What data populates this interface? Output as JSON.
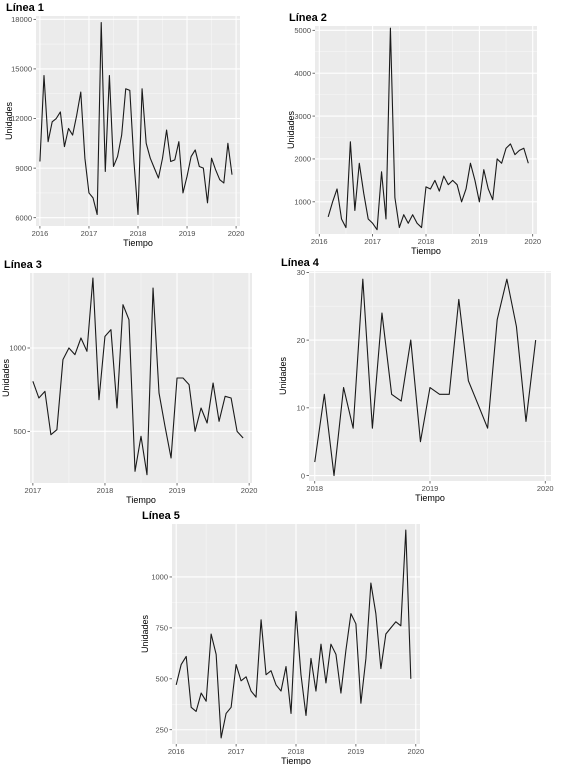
{
  "chart_data": [
    {
      "type": "line",
      "title": "Línea 1",
      "xlabel": "Tiempo",
      "ylabel": "Unidades",
      "xlim": [
        2015.92,
        2020.08
      ],
      "ylim": [
        5500,
        18200
      ],
      "xticks": [
        2016,
        2017,
        2018,
        2019,
        2020
      ],
      "xtick_labels": [
        "2016",
        "2017",
        "2018",
        "2019",
        "2020"
      ],
      "yticks": [
        6000,
        9000,
        12000,
        15000,
        18000
      ],
      "ytick_labels": [
        "6000",
        "9000",
        "12000",
        "15000",
        "18000"
      ],
      "grid": true,
      "series": [
        {
          "x": [
            2016.0,
            2016.083,
            2016.167,
            2016.25,
            2016.333,
            2016.417,
            2016.5,
            2016.583,
            2016.667,
            2016.75,
            2016.833,
            2016.917,
            2017.0,
            2017.083,
            2017.167,
            2017.25,
            2017.333,
            2017.417,
            2017.5,
            2017.583,
            2017.667,
            2017.75,
            2017.833,
            2017.917,
            2018.0,
            2018.083,
            2018.167,
            2018.25,
            2018.333,
            2018.417,
            2018.5,
            2018.583,
            2018.667,
            2018.75,
            2018.833,
            2018.917,
            2019.0,
            2019.083,
            2019.167,
            2019.25,
            2019.333,
            2019.417,
            2019.5,
            2019.583,
            2019.667,
            2019.75,
            2019.833,
            2019.917
          ],
          "y": [
            9400,
            14600,
            10600,
            11800,
            12000,
            12400,
            10300,
            11400,
            11000,
            12200,
            13600,
            9600,
            7500,
            7200,
            6200,
            17800,
            8800,
            14600,
            9100,
            9700,
            11000,
            13800,
            13700,
            9400,
            6200,
            13800,
            10500,
            9600,
            9000,
            8400,
            9600,
            11300,
            9400,
            9500,
            10600,
            7500,
            8500,
            9700,
            10100,
            9100,
            9000,
            6900,
            9600,
            8900,
            8300,
            8100,
            10500,
            8600
          ]
        }
      ]
    },
    {
      "type": "line",
      "title": "Línea 2",
      "xlabel": "Tiempo",
      "ylabel": "Unidades",
      "xlim": [
        2015.92,
        2020.08
      ],
      "ylim": [
        250,
        5100
      ],
      "xticks": [
        2016,
        2017,
        2018,
        2019,
        2020
      ],
      "xtick_labels": [
        "2016",
        "2017",
        "2018",
        "2019",
        "2020"
      ],
      "yticks": [
        1000,
        2000,
        3000,
        4000,
        5000
      ],
      "ytick_labels": [
        "1000",
        "2000",
        "3000",
        "4000",
        "5000"
      ],
      "grid": true,
      "series": [
        {
          "x": [
            2016.167,
            2016.25,
            2016.333,
            2016.417,
            2016.5,
            2016.583,
            2016.667,
            2016.75,
            2016.833,
            2016.917,
            2017.0,
            2017.083,
            2017.167,
            2017.25,
            2017.333,
            2017.417,
            2017.5,
            2017.583,
            2017.667,
            2017.75,
            2017.833,
            2017.917,
            2018.0,
            2018.083,
            2018.167,
            2018.25,
            2018.333,
            2018.417,
            2018.5,
            2018.583,
            2018.667,
            2018.75,
            2018.833,
            2018.917,
            2019.0,
            2019.083,
            2019.167,
            2019.25,
            2019.333,
            2019.417,
            2019.5,
            2019.583,
            2019.667,
            2019.75,
            2019.833,
            2019.917
          ],
          "y": [
            650,
            1000,
            1300,
            600,
            400,
            2400,
            800,
            1900,
            1200,
            600,
            500,
            350,
            1700,
            600,
            5050,
            1100,
            400,
            700,
            500,
            700,
            500,
            400,
            1350,
            1300,
            1500,
            1250,
            1600,
            1400,
            1500,
            1400,
            1000,
            1300,
            1900,
            1500,
            1000,
            1750,
            1300,
            1050,
            2000,
            1900,
            2250,
            2350,
            2100,
            2200,
            2250,
            1900
          ]
        }
      ]
    },
    {
      "type": "line",
      "title": "Línea 3",
      "xlabel": "Tiempo",
      "ylabel": "Unidades",
      "xlim": [
        2016.96,
        2020.04
      ],
      "ylim": [
        190,
        1450
      ],
      "xticks": [
        2017,
        2018,
        2019,
        2020
      ],
      "xtick_labels": [
        "2017",
        "2018",
        "2019",
        "2020"
      ],
      "yticks": [
        500,
        1000
      ],
      "ytick_labels": [
        "500",
        "1000"
      ],
      "grid": true,
      "series": [
        {
          "x": [
            2017.0,
            2017.083,
            2017.167,
            2017.25,
            2017.333,
            2017.417,
            2017.5,
            2017.583,
            2017.667,
            2017.75,
            2017.833,
            2017.917,
            2018.0,
            2018.083,
            2018.167,
            2018.25,
            2018.333,
            2018.417,
            2018.5,
            2018.583,
            2018.667,
            2018.75,
            2018.833,
            2018.917,
            2019.0,
            2019.083,
            2019.167,
            2019.25,
            2019.333,
            2019.417,
            2019.5,
            2019.583,
            2019.667,
            2019.75,
            2019.833,
            2019.917
          ],
          "y": [
            800,
            700,
            740,
            480,
            510,
            930,
            1000,
            960,
            1060,
            980,
            1420,
            690,
            1070,
            1110,
            640,
            1260,
            1170,
            260,
            470,
            240,
            1360,
            730,
            530,
            340,
            820,
            820,
            780,
            500,
            640,
            550,
            790,
            560,
            710,
            700,
            500,
            460
          ]
        }
      ]
    },
    {
      "type": "line",
      "title": "Línea 4",
      "xlabel": "Tiempo",
      "ylabel": "Unidades",
      "xlim": [
        2017.95,
        2020.05
      ],
      "ylim": [
        -0.8,
        30.2
      ],
      "xticks": [
        2018,
        2019,
        2020
      ],
      "xtick_labels": [
        "2018",
        "2019",
        "2020"
      ],
      "yticks": [
        0,
        10,
        20,
        30
      ],
      "ytick_labels": [
        "0",
        "10",
        "20",
        "30"
      ],
      "grid": true,
      "series": [
        {
          "x": [
            2018.0,
            2018.083,
            2018.167,
            2018.25,
            2018.333,
            2018.417,
            2018.5,
            2018.583,
            2018.667,
            2018.75,
            2018.833,
            2018.917,
            2019.0,
            2019.083,
            2019.167,
            2019.25,
            2019.333,
            2019.417,
            2019.5,
            2019.583,
            2019.667,
            2019.75,
            2019.833,
            2019.917
          ],
          "y": [
            2,
            12,
            0,
            13,
            7,
            29,
            7,
            24,
            12,
            11,
            20,
            5,
            13,
            12,
            12,
            26,
            14,
            10.5,
            7,
            23,
            29,
            22,
            8,
            20
          ]
        }
      ]
    },
    {
      "type": "line",
      "title": "Línea 5",
      "xlabel": "Tiempo",
      "ylabel": "Unidades",
      "xlim": [
        2015.93,
        2020.07
      ],
      "ylim": [
        180,
        1260
      ],
      "xticks": [
        2016,
        2017,
        2018,
        2019,
        2020
      ],
      "xtick_labels": [
        "2016",
        "2017",
        "2018",
        "2019",
        "2020"
      ],
      "yticks": [
        250,
        500,
        750,
        1000
      ],
      "ytick_labels": [
        "250",
        "500",
        "750",
        "1000"
      ],
      "grid": true,
      "series": [
        {
          "x": [
            2016.0,
            2016.083,
            2016.167,
            2016.25,
            2016.333,
            2016.417,
            2016.5,
            2016.583,
            2016.667,
            2016.75,
            2016.833,
            2016.917,
            2017.0,
            2017.083,
            2017.167,
            2017.25,
            2017.333,
            2017.417,
            2017.5,
            2017.583,
            2017.667,
            2017.75,
            2017.833,
            2017.917,
            2018.0,
            2018.083,
            2018.167,
            2018.25,
            2018.333,
            2018.417,
            2018.5,
            2018.583,
            2018.667,
            2018.75,
            2018.833,
            2018.917,
            2019.0,
            2019.083,
            2019.167,
            2019.25,
            2019.333,
            2019.417,
            2019.5,
            2019.583,
            2019.667,
            2019.75,
            2019.833,
            2019.917
          ],
          "y": [
            470,
            570,
            610,
            360,
            340,
            430,
            390,
            720,
            620,
            210,
            330,
            360,
            570,
            490,
            510,
            440,
            410,
            790,
            520,
            540,
            470,
            440,
            560,
            330,
            830,
            520,
            320,
            600,
            440,
            670,
            480,
            670,
            620,
            430,
            640,
            820,
            770,
            380,
            600,
            970,
            820,
            550,
            720,
            750,
            780,
            760,
            1230,
            500
          ]
        }
      ]
    }
  ]
}
